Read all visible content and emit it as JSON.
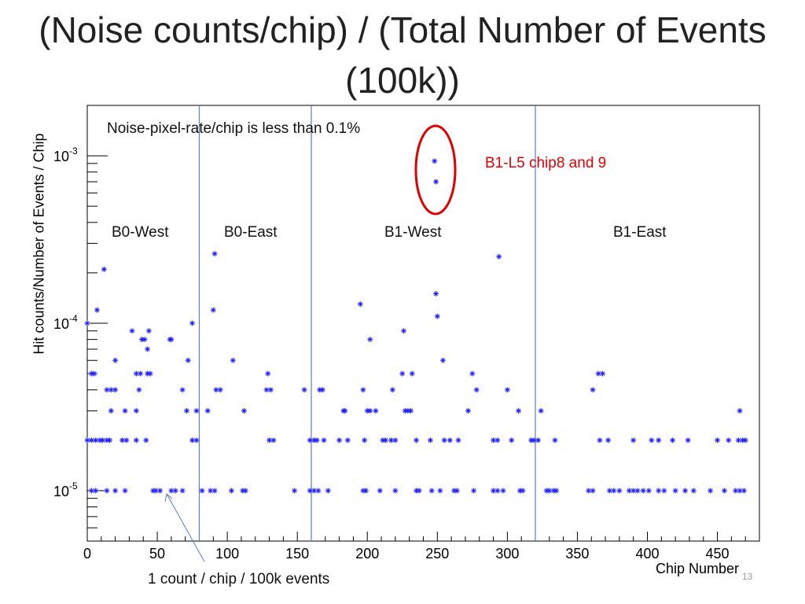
{
  "slide": {
    "title": "(Noise counts/chip) / (Total Number of Events (100k))",
    "slide_number": "13"
  },
  "chart_data": {
    "type": "scatter",
    "title": "",
    "xlabel": "Chip Number",
    "ylabel": "Hit counts/Number of Events / Chip",
    "xlim": [
      0,
      480
    ],
    "ylim": [
      5e-06,
      0.002
    ],
    "yscale": "log",
    "x_ticks": [
      "0",
      "50",
      "100",
      "150",
      "200",
      "250",
      "300",
      "350",
      "400",
      "450"
    ],
    "y_ticks": [
      "10^-3",
      "10^-4",
      "10^-5"
    ],
    "marker": "asterisk",
    "marker_color": "#1a1aff",
    "divider_lines_x": [
      80,
      160,
      320
    ],
    "divider_color": "#5b7fb8",
    "highlight_color": "#e00000",
    "annotations": {
      "note": "Noise-pixel-rate/chip is less than 0.1%",
      "highlight_label": "B1-L5 chip8 and 9",
      "region_b0_west": "B0-West",
      "region_b0_east": "B0-East",
      "region_b1_west": "B1-West",
      "region_b1_east": "B1-East",
      "bottom_note": "1 count / chip / 100k events"
    },
    "series": [
      {
        "points": [
          [
            248,
            0.00093
          ],
          [
            249,
            0.0007
          ],
          [
            91,
            0.00026
          ],
          [
            294,
            0.00025
          ],
          [
            12,
            0.00021
          ],
          [
            195,
            0.00013
          ],
          [
            249,
            0.00015
          ],
          [
            250,
            0.00011
          ],
          [
            7,
            0.00012
          ],
          [
            90,
            0.00012
          ],
          [
            0,
            0.0001
          ],
          [
            75,
            0.0001
          ],
          [
            226,
            9e-05
          ],
          [
            32,
            9e-05
          ],
          [
            44,
            9e-05
          ],
          [
            39,
            8e-05
          ],
          [
            41,
            8e-05
          ],
          [
            59,
            8e-05
          ],
          [
            60,
            8e-05
          ],
          [
            202,
            8e-05
          ],
          [
            43,
            7e-05
          ],
          [
            20,
            6e-05
          ],
          [
            72,
            6e-05
          ],
          [
            104,
            6e-05
          ],
          [
            254,
            6e-05
          ],
          [
            3,
            5e-05
          ],
          [
            5,
            5e-05
          ],
          [
            35,
            5e-05
          ],
          [
            38,
            5e-05
          ],
          [
            43,
            5e-05
          ],
          [
            45,
            5e-05
          ],
          [
            129,
            5e-05
          ],
          [
            225,
            5e-05
          ],
          [
            232,
            5e-05
          ],
          [
            275,
            5e-05
          ],
          [
            365,
            5e-05
          ],
          [
            368,
            5e-05
          ],
          [
            14,
            4e-05
          ],
          [
            17,
            4e-05
          ],
          [
            20,
            4e-05
          ],
          [
            37,
            4e-05
          ],
          [
            68,
            4e-05
          ],
          [
            92,
            4e-05
          ],
          [
            95,
            4e-05
          ],
          [
            128,
            4e-05
          ],
          [
            131,
            4e-05
          ],
          [
            155,
            4e-05
          ],
          [
            166,
            4e-05
          ],
          [
            168,
            4e-05
          ],
          [
            197,
            4e-05
          ],
          [
            218,
            4e-05
          ],
          [
            278,
            4e-05
          ],
          [
            300,
            4e-05
          ],
          [
            361,
            4e-05
          ],
          [
            17,
            3e-05
          ],
          [
            27,
            3e-05
          ],
          [
            35,
            3e-05
          ],
          [
            71,
            3e-05
          ],
          [
            78,
            3e-05
          ],
          [
            86,
            3e-05
          ],
          [
            112,
            3e-05
          ],
          [
            183,
            3e-05
          ],
          [
            184,
            3e-05
          ],
          [
            200,
            3e-05
          ],
          [
            202,
            3e-05
          ],
          [
            206,
            3e-05
          ],
          [
            227,
            3e-05
          ],
          [
            229,
            3e-05
          ],
          [
            231,
            3e-05
          ],
          [
            272,
            3e-05
          ],
          [
            308,
            3e-05
          ],
          [
            324,
            3e-05
          ],
          [
            466,
            3e-05
          ],
          [
            0,
            2e-05
          ],
          [
            3,
            2e-05
          ],
          [
            6,
            2e-05
          ],
          [
            9,
            2e-05
          ],
          [
            11,
            2e-05
          ],
          [
            14,
            2e-05
          ],
          [
            16,
            2e-05
          ],
          [
            25,
            2e-05
          ],
          [
            28,
            2e-05
          ],
          [
            35,
            2e-05
          ],
          [
            42,
            2e-05
          ],
          [
            75,
            2e-05
          ],
          [
            78,
            2e-05
          ],
          [
            130,
            2e-05
          ],
          [
            133,
            2e-05
          ],
          [
            159,
            2e-05
          ],
          [
            162,
            2e-05
          ],
          [
            164,
            2e-05
          ],
          [
            169,
            2e-05
          ],
          [
            180,
            2e-05
          ],
          [
            186,
            2e-05
          ],
          [
            198,
            2e-05
          ],
          [
            211,
            2e-05
          ],
          [
            213,
            2e-05
          ],
          [
            217,
            2e-05
          ],
          [
            220,
            2e-05
          ],
          [
            235,
            2e-05
          ],
          [
            245,
            2e-05
          ],
          [
            255,
            2e-05
          ],
          [
            259,
            2e-05
          ],
          [
            265,
            2e-05
          ],
          [
            290,
            2e-05
          ],
          [
            293,
            2e-05
          ],
          [
            303,
            2e-05
          ],
          [
            317,
            2e-05
          ],
          [
            319,
            2e-05
          ],
          [
            322,
            2e-05
          ],
          [
            334,
            2e-05
          ],
          [
            366,
            2e-05
          ],
          [
            372,
            2e-05
          ],
          [
            390,
            2e-05
          ],
          [
            403,
            2e-05
          ],
          [
            408,
            2e-05
          ],
          [
            418,
            2e-05
          ],
          [
            429,
            2e-05
          ],
          [
            450,
            2e-05
          ],
          [
            458,
            2e-05
          ],
          [
            465,
            2e-05
          ],
          [
            468,
            2e-05
          ],
          [
            470,
            2e-05
          ],
          [
            3,
            1e-05
          ],
          [
            6,
            1e-05
          ],
          [
            14,
            1e-05
          ],
          [
            20,
            1e-05
          ],
          [
            27,
            1e-05
          ],
          [
            47,
            1e-05
          ],
          [
            49,
            1e-05
          ],
          [
            52,
            1e-05
          ],
          [
            60,
            1e-05
          ],
          [
            63,
            1e-05
          ],
          [
            68,
            1e-05
          ],
          [
            82,
            1e-05
          ],
          [
            88,
            1e-05
          ],
          [
            91,
            1e-05
          ],
          [
            103,
            1e-05
          ],
          [
            111,
            1e-05
          ],
          [
            113,
            1e-05
          ],
          [
            148,
            1e-05
          ],
          [
            159,
            1e-05
          ],
          [
            162,
            1e-05
          ],
          [
            165,
            1e-05
          ],
          [
            172,
            1e-05
          ],
          [
            197,
            1e-05
          ],
          [
            199,
            1e-05
          ],
          [
            209,
            1e-05
          ],
          [
            220,
            1e-05
          ],
          [
            235,
            1e-05
          ],
          [
            237,
            1e-05
          ],
          [
            246,
            1e-05
          ],
          [
            252,
            1e-05
          ],
          [
            262,
            1e-05
          ],
          [
            264,
            1e-05
          ],
          [
            276,
            1e-05
          ],
          [
            290,
            1e-05
          ],
          [
            293,
            1e-05
          ],
          [
            297,
            1e-05
          ],
          [
            309,
            1e-05
          ],
          [
            311,
            1e-05
          ],
          [
            328,
            1e-05
          ],
          [
            330,
            1e-05
          ],
          [
            333,
            1e-05
          ],
          [
            335,
            1e-05
          ],
          [
            358,
            1e-05
          ],
          [
            361,
            1e-05
          ],
          [
            373,
            1e-05
          ],
          [
            376,
            1e-05
          ],
          [
            380,
            1e-05
          ],
          [
            387,
            1e-05
          ],
          [
            390,
            1e-05
          ],
          [
            393,
            1e-05
          ],
          [
            397,
            1e-05
          ],
          [
            401,
            1e-05
          ],
          [
            408,
            1e-05
          ],
          [
            412,
            1e-05
          ],
          [
            420,
            1e-05
          ],
          [
            427,
            1e-05
          ],
          [
            433,
            1e-05
          ],
          [
            445,
            1e-05
          ],
          [
            455,
            1e-05
          ],
          [
            463,
            1e-05
          ],
          [
            466,
            1e-05
          ],
          [
            469,
            1e-05
          ]
        ]
      }
    ]
  }
}
